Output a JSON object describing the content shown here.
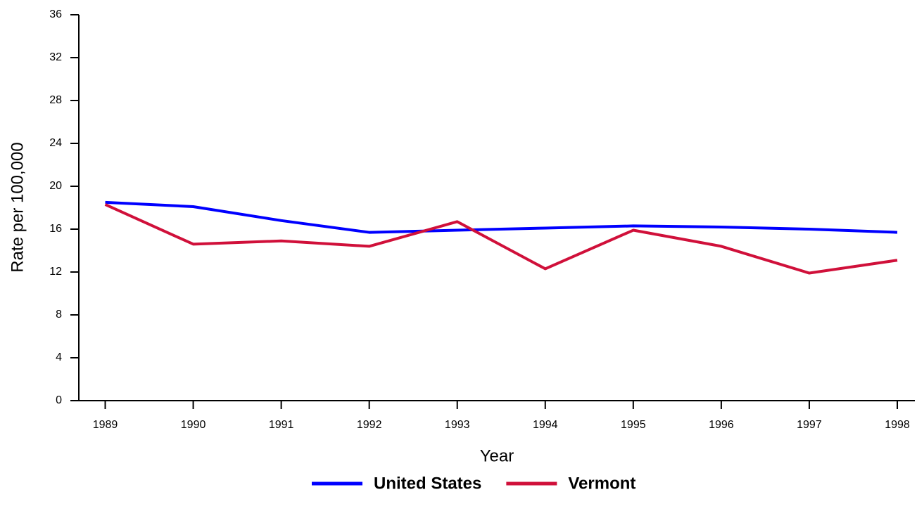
{
  "chart_data": {
    "type": "line",
    "x_label": "Year",
    "y_label": "Rate per 100,000",
    "x": [
      1989,
      1990,
      1991,
      1992,
      1993,
      1994,
      1995,
      1996,
      1997,
      1998
    ],
    "series": [
      {
        "name": "United States",
        "color": "#0000ff",
        "values": [
          18.5,
          18.1,
          16.8,
          15.7,
          15.9,
          16.1,
          16.3,
          16.2,
          16.0,
          15.7
        ]
      },
      {
        "name": "Vermont",
        "color": "#d0103a",
        "values": [
          18.3,
          14.6,
          14.9,
          14.4,
          16.7,
          12.3,
          15.9,
          14.4,
          11.9,
          13.1
        ]
      }
    ],
    "xlim": [
      1988.7,
      1998.2
    ],
    "xticks": [
      1989,
      1990,
      1991,
      1992,
      1993,
      1994,
      1995,
      1996,
      1997,
      1998
    ],
    "ylim": [
      0,
      36
    ],
    "yticks": [
      0,
      4,
      8,
      12,
      16,
      20,
      24,
      28,
      32,
      36
    ],
    "grid": false,
    "legend": "bottom"
  }
}
